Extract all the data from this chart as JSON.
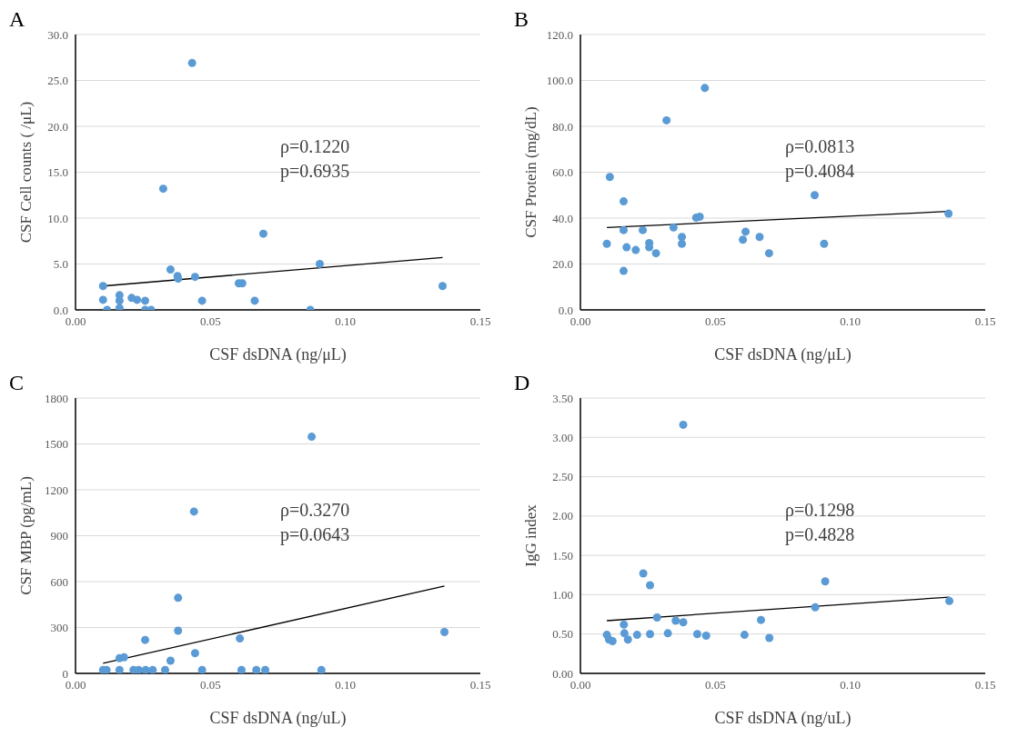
{
  "chart_data": [
    {
      "type": "scatter",
      "title": "A",
      "xlabel": "CSF dsDNA (ng/μL)",
      "ylabel": "CSF Cell counts ( /μL)",
      "annotations": [
        "ρ=0.1220",
        "p=0.6935"
      ],
      "grid": "y",
      "xlim": [
        0,
        0.15
      ],
      "xticks": [
        {
          "value": 0,
          "label": "0.00"
        },
        {
          "value": 0.05,
          "label": "0.05"
        },
        {
          "value": 0.1,
          "label": "0.10"
        },
        {
          "value": 0.15,
          "label": "0.15"
        }
      ],
      "ylim": [
        0,
        30
      ],
      "yticks": [
        {
          "value": 0,
          "label": "0.0"
        },
        {
          "value": 5,
          "label": "5.0"
        },
        {
          "value": 10,
          "label": "10.0"
        },
        {
          "value": 15,
          "label": "15.0"
        },
        {
          "value": 20,
          "label": "20.0"
        },
        {
          "value": 25,
          "label": "25.0"
        },
        {
          "value": 30,
          "label": "30.0"
        }
      ],
      "series": [
        {
          "marker": "circle",
          "color": "#5b9bd5",
          "x": [
            0.0102,
            0.0102,
            0.0117,
            0.0163,
            0.0163,
            0.0163,
            0.0208,
            0.0228,
            0.0258,
            0.0258,
            0.028,
            0.0325,
            0.0352,
            0.0378,
            0.038,
            0.0432,
            0.0443,
            0.0469,
            0.0605,
            0.0618,
            0.0664,
            0.0696,
            0.087,
            0.0905,
            0.136
          ],
          "values": [
            2.6,
            1.1,
            0,
            1.6,
            1.0,
            0.2,
            1.3,
            1.1,
            1.0,
            0,
            0,
            13.2,
            4.4,
            3.7,
            3.4,
            26.9,
            3.6,
            1.0,
            2.9,
            2.9,
            1.0,
            8.3,
            0,
            5.0,
            2.6
          ]
        },
        {
          "type": "line",
          "marker": "none",
          "color": "#000000",
          "x": [
            0.0102,
            0.136
          ],
          "values": [
            2.6,
            5.7
          ]
        }
      ]
    },
    {
      "type": "scatter",
      "title": "B",
      "xlabel": "CSF dsDNA (ng/μL)",
      "ylabel": "CSF Protein (mg/dL)",
      "annotations": [
        "ρ=0.0813",
        "p=0.4084"
      ],
      "grid": "y",
      "xlim": [
        0,
        0.15
      ],
      "xticks": [
        {
          "value": 0,
          "label": "0.00"
        },
        {
          "value": 0.05,
          "label": "0.05"
        },
        {
          "value": 0.1,
          "label": "0.10"
        },
        {
          "value": 0.15,
          "label": "0.15"
        }
      ],
      "ylim": [
        0,
        120
      ],
      "yticks": [
        {
          "value": 0,
          "label": "0.0"
        },
        {
          "value": 20,
          "label": "20.0"
        },
        {
          "value": 40,
          "label": "40.0"
        },
        {
          "value": 60,
          "label": "60.0"
        },
        {
          "value": 80,
          "label": "80.0"
        },
        {
          "value": 100,
          "label": "100.0"
        },
        {
          "value": 120,
          "label": "120.0"
        }
      ],
      "series": [
        {
          "marker": "circle",
          "color": "#5b9bd5",
          "x": [
            0.0098,
            0.0109,
            0.016,
            0.016,
            0.016,
            0.0171,
            0.0205,
            0.0231,
            0.0255,
            0.0255,
            0.028,
            0.0319,
            0.0345,
            0.0376,
            0.0376,
            0.0429,
            0.0442,
            0.0461,
            0.0602,
            0.0612,
            0.0664,
            0.0699,
            0.0868,
            0.0903,
            0.1364
          ],
          "values": [
            28.8,
            57.9,
            47.3,
            34.8,
            17.0,
            27.3,
            26.1,
            34.8,
            29.1,
            27.3,
            24.7,
            82.6,
            35.9,
            31.8,
            28.8,
            40.2,
            40.6,
            96.7,
            30.6,
            34.1,
            31.8,
            24.7,
            50.0,
            28.8,
            42.0
          ]
        },
        {
          "type": "line",
          "marker": "none",
          "color": "#000000",
          "x": [
            0.0098,
            0.1364
          ],
          "values": [
            35.9,
            42.9
          ]
        }
      ]
    },
    {
      "type": "scatter",
      "title": "C",
      "xlabel": "CSF dsDNA (ng/uL)",
      "ylabel": "CSF MBP (pg/mL)",
      "annotations": [
        "ρ=0.3270",
        "p=0.0643"
      ],
      "grid": "y",
      "xlim": [
        0,
        0.15
      ],
      "xticks": [
        {
          "value": 0,
          "label": "0.00"
        },
        {
          "value": 0.05,
          "label": "0.05"
        },
        {
          "value": 0.1,
          "label": "0.10"
        },
        {
          "value": 0.15,
          "label": "0.15"
        }
      ],
      "ylim": [
        0,
        1800
      ],
      "yticks": [
        0,
        300,
        600,
        900,
        1200,
        1500,
        1800
      ],
      "series": [
        {
          "marker": "circle",
          "color": "#5b9bd5",
          "x": [
            0.0102,
            0.0115,
            0.0163,
            0.0163,
            0.018,
            0.0215,
            0.0234,
            0.0258,
            0.026,
            0.0286,
            0.0332,
            0.0352,
            0.038,
            0.038,
            0.0439,
            0.0443,
            0.0469,
            0.0609,
            0.0615,
            0.067,
            0.0703,
            0.0875,
            0.0911,
            0.1367
          ],
          "values": [
            22,
            22,
            22,
            99,
            105,
            22,
            22,
            219,
            22,
            22,
            22,
            83,
            494,
            279,
            1058,
            132,
            22,
            228,
            22,
            22,
            22,
            1547,
            22,
            270
          ]
        },
        {
          "type": "line",
          "marker": "none",
          "color": "#000000",
          "x": [
            0.0102,
            0.1367
          ],
          "values": [
            66,
            571
          ]
        }
      ]
    },
    {
      "type": "scatter",
      "title": "D",
      "xlabel": "CSF dsDNA (ng/uL)",
      "ylabel": "IgG index",
      "annotations": [
        "ρ=0.1298",
        "p=0.4828"
      ],
      "grid": "y",
      "xlim": [
        0,
        0.15
      ],
      "xticks": [
        {
          "value": 0,
          "label": "0.00"
        },
        {
          "value": 0.05,
          "label": "0.05"
        },
        {
          "value": 0.1,
          "label": "0.10"
        },
        {
          "value": 0.15,
          "label": "0.15"
        }
      ],
      "ylim": [
        0,
        3.5
      ],
      "yticks": [
        {
          "value": 0,
          "label": "0.00"
        },
        {
          "value": 0.5,
          "label": "0.50"
        },
        {
          "value": 1,
          "label": "1.00"
        },
        {
          "value": 1.5,
          "label": "1.50"
        },
        {
          "value": 2,
          "label": "2.00"
        },
        {
          "value": 2.5,
          "label": "2.50"
        },
        {
          "value": 3,
          "label": "3.00"
        },
        {
          "value": 3.5,
          "label": "3.50"
        }
      ],
      "series": [
        {
          "marker": "circle",
          "color": "#5b9bd5",
          "x": [
            0.0098,
            0.0106,
            0.0119,
            0.0161,
            0.0163,
            0.0176,
            0.021,
            0.0233,
            0.0258,
            0.0258,
            0.0284,
            0.0324,
            0.0353,
            0.0381,
            0.0381,
            0.0433,
            0.0466,
            0.0608,
            0.0669,
            0.07,
            0.087,
            0.0907,
            0.1367
          ],
          "values": [
            0.49,
            0.43,
            0.41,
            0.62,
            0.51,
            0.43,
            0.49,
            1.27,
            1.12,
            0.5,
            0.71,
            0.51,
            0.67,
            3.16,
            0.65,
            0.5,
            0.48,
            0.49,
            0.68,
            0.45,
            0.84,
            1.17,
            0.92
          ]
        },
        {
          "type": "line",
          "marker": "none",
          "color": "#000000",
          "x": [
            0.0098,
            0.1367
          ],
          "values": [
            0.67,
            0.97
          ]
        }
      ]
    }
  ]
}
